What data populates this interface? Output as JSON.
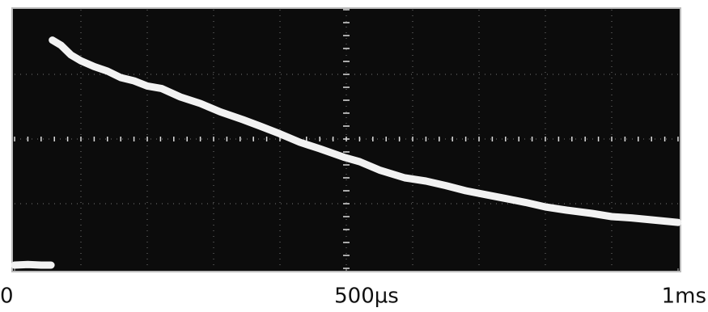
{
  "chart_data": {
    "type": "line",
    "x": [
      0,
      20,
      40,
      55,
      null,
      57,
      70,
      85,
      100,
      120,
      140,
      160,
      180,
      200,
      222,
      250,
      280,
      310,
      344,
      370,
      400,
      430,
      460,
      496,
      520,
      550,
      588,
      620,
      650,
      680,
      710,
      740,
      770,
      800,
      832,
      870,
      900,
      930,
      960,
      1000
    ],
    "series": [
      {
        "color": "#f2f2f2",
        "values": [
          -1.95,
          -1.94,
          -1.95,
          -1.95,
          null,
          1.53,
          1.45,
          1.3,
          1.21,
          1.12,
          1.05,
          0.95,
          0.9,
          0.82,
          0.78,
          0.65,
          0.55,
          0.42,
          0.3,
          0.2,
          0.08,
          -0.05,
          -0.15,
          -0.28,
          -0.35,
          -0.48,
          -0.6,
          -0.65,
          -0.72,
          -0.8,
          -0.86,
          -0.92,
          -0.98,
          -1.05,
          -1.1,
          -1.15,
          -1.2,
          -1.22,
          -1.25,
          -1.29
        ]
      }
    ],
    "xlim": [
      0,
      1000
    ],
    "xticks": [
      0,
      {
        "value": 500,
        "label": "500µs"
      },
      {
        "value": 1000,
        "label": "1ms"
      }
    ],
    "ylim": [
      -2,
      2
    ]
  }
}
